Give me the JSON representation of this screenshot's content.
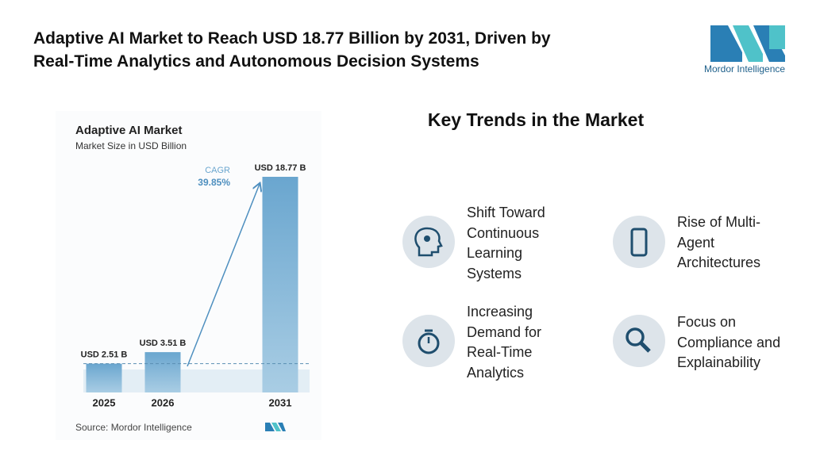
{
  "header": {
    "title_lines": [
      "Adaptive AI Market to Reach USD 18.77 Billion by 2031, Driven by",
      "Real-Time Analytics and Autonomous Decision Systems"
    ],
    "logo_text": "Mordor Intelligence"
  },
  "chart_data": {
    "type": "bar",
    "title": "Adaptive AI Market",
    "subtitle": "Market Size in USD Billion",
    "categories": [
      "2025",
      "2026",
      "2031"
    ],
    "values": [
      2.51,
      3.51,
      18.77
    ],
    "value_labels": [
      "USD 2.51 B",
      "USD 3.51 B",
      "USD 18.77 B"
    ],
    "color": "#6aa6cf",
    "annotation": {
      "label": "CAGR",
      "value": "39.85%"
    },
    "source": "Source: Mordor Intelligence"
  },
  "trends": {
    "title": "Key Trends in the Market",
    "items": [
      "Shift Toward Continuous Learning Systems",
      "Rise of Multi-Agent Architectures",
      "Increasing Demand for Real-Time Analytics",
      "Focus on Compliance and Explainability"
    ]
  }
}
